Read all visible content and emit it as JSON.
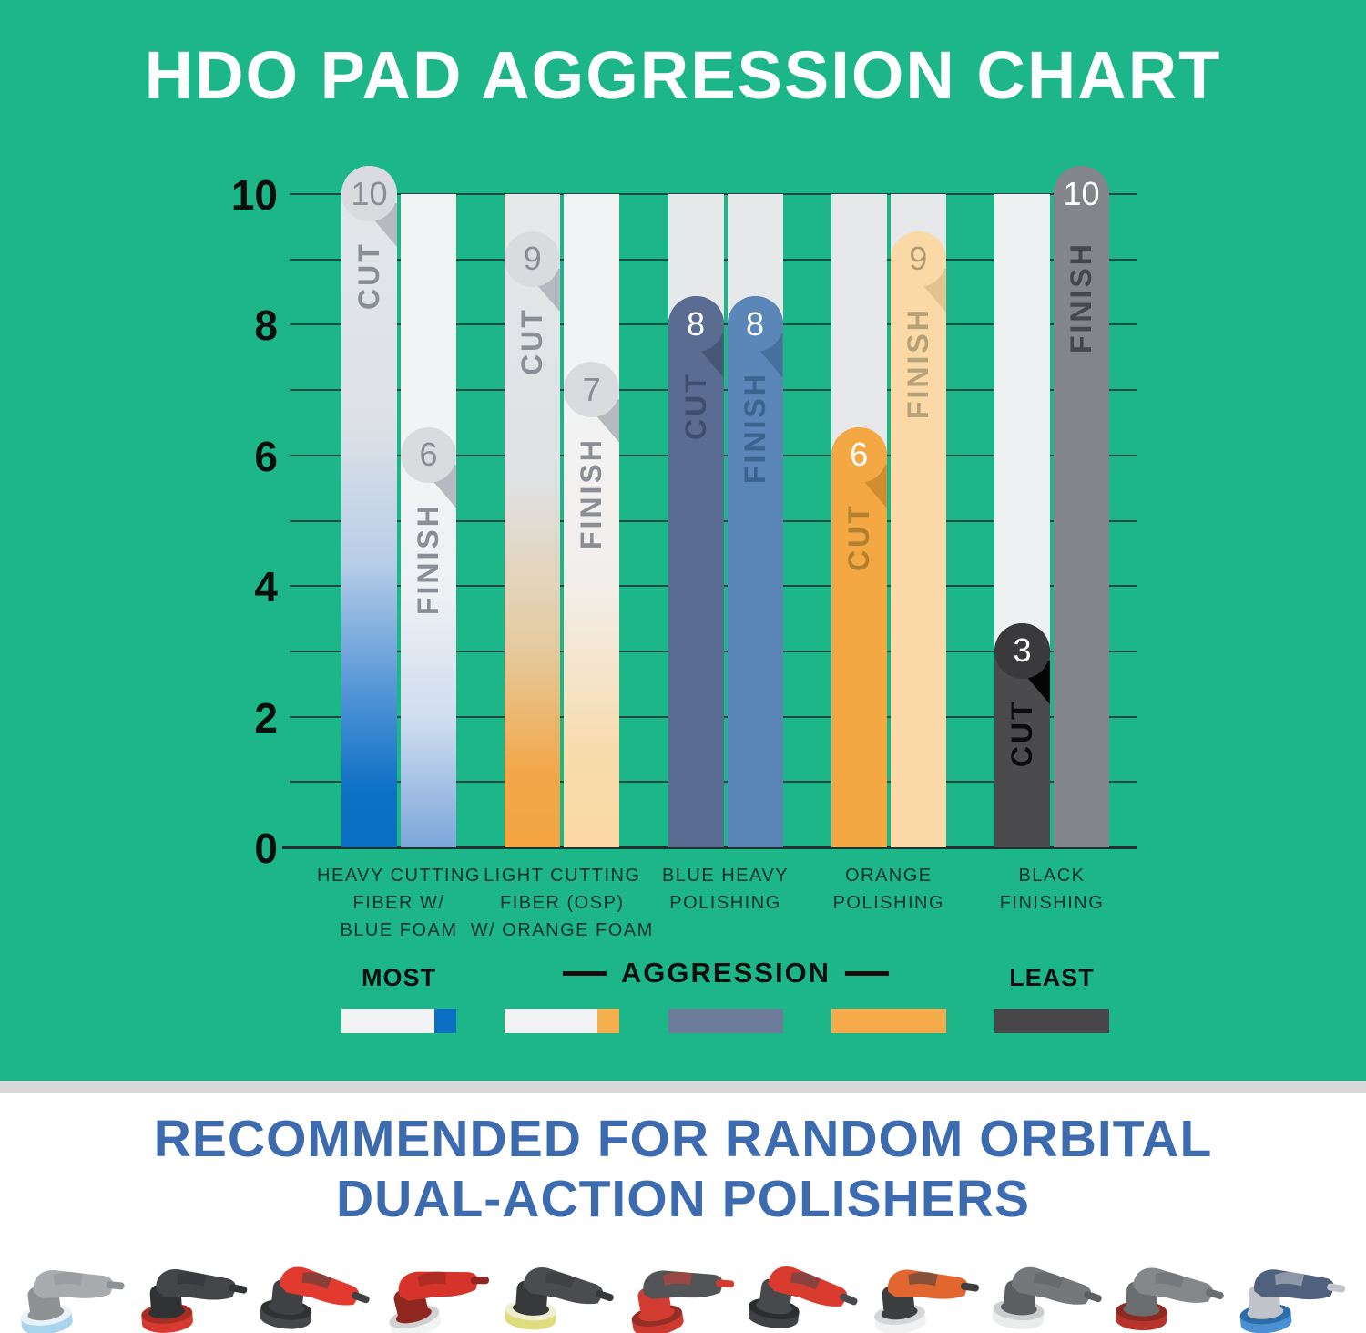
{
  "title": "HDO PAD AGGRESSION CHART",
  "colors": {
    "background_green": "#1db689",
    "gridline": "#1d4b41",
    "baseline": "#16362f",
    "axis_text": "#0a0f0d",
    "category_text": "#15322c",
    "title_text": "#ffffff",
    "footer_heading_blue": "#3c6bb0",
    "separator_gray": "#d7d9d8"
  },
  "chart_data": {
    "type": "bar",
    "title": "HDO PAD AGGRESSION CHART",
    "ylim": [
      0,
      10
    ],
    "yticks": [
      10,
      8,
      6,
      4,
      2,
      0
    ],
    "grid": true,
    "gridline_step": 1,
    "legend_position": "bottom",
    "categories": [
      "HEAVY CUTTING\nFIBER W/\nBLUE FOAM",
      "LIGHT CUTTING\nFIBER (OSP)\nW/ ORANGE FOAM",
      "BLUE HEAVY\nPOLISHING",
      "ORANGE\nPOLISHING",
      "BLACK\nFINISHING"
    ],
    "series": [
      {
        "name": "CUT",
        "values": [
          10,
          9,
          8,
          6,
          3
        ]
      },
      {
        "name": "FINISH",
        "values": [
          6,
          7,
          8,
          9,
          10
        ]
      }
    ],
    "groups": [
      {
        "category": "HEAVY CUTTING\nFIBER W/\nBLUE FOAM",
        "bars": [
          {
            "series": "CUT",
            "value": 10,
            "badge": "10",
            "fill": [
              "#e4e7ea 0%",
              "#dde1e6 38%",
              "#b9cee8 58%",
              "#4f93d6 78%",
              "#0c70c5 92%",
              "#0a6ec3 100%"
            ],
            "track": null,
            "badge_bg": "#d9dbdf",
            "badge_text_color": "#898e95",
            "fold": "#b6bac0",
            "label_color": "#8a8f96"
          },
          {
            "series": "FINISH",
            "value": 6,
            "badge": "6",
            "fill": [
              "#f3f4f6 0%",
              "#eef1f4 40%",
              "#cfdcef 70%",
              "#7ba7da 100%"
            ],
            "track": "#f2f3f5",
            "badge_bg": "#d9dbdf",
            "badge_text_color": "#898e95",
            "fold": "#b6bac0",
            "label_color": "#8a8f96"
          }
        ]
      },
      {
        "category": "LIGHT CUTTING\nFIBER (OSP)\nW/ ORANGE FOAM",
        "bars": [
          {
            "series": "CUT",
            "value": 9,
            "badge": "9",
            "fill": [
              "#e4e7ea 0%",
              "#dfe2e5 40%",
              "#e6ca9e 68%",
              "#f2a748 88%",
              "#f3a440 100%"
            ],
            "track": "#e6e8ea",
            "badge_bg": "#d9dbdf",
            "badge_text_color": "#898e95",
            "fold": "#b6bac0",
            "label_color": "#8a8f96"
          },
          {
            "series": "FINISH",
            "value": 7,
            "badge": "7",
            "fill": [
              "#f3f4f6 0%",
              "#f1efec 45%",
              "#f8dcae 80%",
              "#fbd8a2 100%"
            ],
            "track": "#f2f3f5",
            "badge_bg": "#d9dbdf",
            "badge_text_color": "#898e95",
            "fold": "#b6bac0",
            "label_color": "#8a8f96"
          }
        ]
      },
      {
        "category": "BLUE HEAVY\nPOLISHING",
        "bars": [
          {
            "series": "CUT",
            "value": 8,
            "badge": "8",
            "fill": "#5b6c92",
            "track": "#e6e8ea",
            "badge_bg": "#5b6c92",
            "badge_text_color": "#ffffff",
            "fold": "#475877",
            "label_color": "#3d4e6f"
          },
          {
            "series": "FINISH",
            "value": 8,
            "badge": "8",
            "fill": "#5a87b7",
            "track": "#e6e8ea",
            "badge_bg": "#5a87b7",
            "badge_text_color": "#ffffff",
            "fold": "#44719d",
            "label_color": "#39648f"
          }
        ]
      },
      {
        "category": "ORANGE\nPOLISHING",
        "bars": [
          {
            "series": "CUT",
            "value": 6,
            "badge": "6",
            "fill": "#f3a843",
            "track": "#e6e8ea",
            "badge_bg": "#f3a843",
            "badge_text_color": "#ffffff",
            "fold": "#d08c2f",
            "label_color": "#b5802e"
          },
          {
            "series": "FINISH",
            "value": 9,
            "badge": "9",
            "fill": "#fbd9a6",
            "track": "#e6e8ea",
            "badge_bg": "#fbd9a6",
            "badge_text_color": "#b29a6e",
            "fold": "#e4c28d",
            "label_color": "#b8a077"
          }
        ]
      },
      {
        "category": "BLACK\nFINISHING",
        "bars": [
          {
            "series": "CUT",
            "value": 3,
            "badge": "3",
            "fill": "#4b4b4e",
            "track": "#eff0f1",
            "badge_bg": "#3a3a3d",
            "badge_text_color": "#ffffff",
            "fold": "#050505",
            "label_color": "#0c0c0c"
          },
          {
            "series": "FINISH",
            "value": 10,
            "badge": "10",
            "fill": "#828589",
            "track": null,
            "badge_bg": "#828589",
            "badge_text_color": "#ffffff",
            "fold": null,
            "label_color": "#44484c"
          }
        ]
      }
    ]
  },
  "legend": {
    "most": "MOST",
    "center": "AGGRESSION",
    "least": "LEAST",
    "swatches": [
      {
        "name": "heavy-cutting-fiber-blue-foam",
        "base": "#f1f3f4",
        "tip": "#0b6fc4"
      },
      {
        "name": "light-cutting-fiber-orange-foam",
        "base": "#f1f3f4",
        "tip": "#f5b04d"
      },
      {
        "name": "blue-heavy-polishing",
        "base": "#6d7c9b",
        "tip": null
      },
      {
        "name": "orange-polishing",
        "base": "#f5ab4c",
        "tip": null
      },
      {
        "name": "black-finishing",
        "base": "#474749",
        "tip": null
      }
    ]
  },
  "footer": {
    "heading_line1": "RECOMMENDED FOR RANDOM ORBITAL",
    "heading_line2": "DUAL-ACTION POLISHERS",
    "machines": [
      {
        "name": "polisher-gray-blue-pad",
        "body": "#a8abae",
        "accent": "#8f9295",
        "pad": "#a9d4ee",
        "rim": "#e8f2f8"
      },
      {
        "name": "polisher-dark-red-pad",
        "body": "#434548",
        "accent": "#303234",
        "pad": "#d63a30",
        "rim": "#a92d25"
      },
      {
        "name": "polisher-red-dark-pad",
        "body": "#e23a2e",
        "accent": "#3f4144",
        "pad": "#45474a",
        "rim": "#2f3133"
      },
      {
        "name": "polisher-red-white-pad",
        "body": "#d6342a",
        "accent": "#8f2720",
        "pad": "#f2f3f3",
        "rim": "#cfd0d1"
      },
      {
        "name": "polisher-dark-yellow-pad",
        "body": "#4a4c4f",
        "accent": "#36383a",
        "pad": "#dfdc7d",
        "rim": "#efeecf"
      },
      {
        "name": "polisher-dark-red-accent",
        "body": "#525457",
        "accent": "#d23c31",
        "pad": "#cf3a30",
        "rim": "#952e26"
      },
      {
        "name": "polisher-red-dark-pad-2",
        "body": "#d93b2f",
        "accent": "#47494c",
        "pad": "#3f4144",
        "rim": "#2b2d2f"
      },
      {
        "name": "sander-orange-white-pad",
        "body": "#e2662f",
        "accent": "#3c3e40",
        "pad": "#f1f1f1",
        "rim": "#d4d5d6"
      },
      {
        "name": "polisher-gray-white-pad",
        "body": "#75787b",
        "accent": "#5c5f62",
        "pad": "#eaebeb",
        "rim": "#cbcccd"
      },
      {
        "name": "polisher-gray-red-pad",
        "body": "#85888b",
        "accent": "#6a6d70",
        "pad": "#b6342c",
        "rim": "#8d2a23"
      },
      {
        "name": "polisher-silver-blue-pad",
        "body": "#50617e",
        "accent": "#c0c4ca",
        "pad": "#4a90d3",
        "rim": "#2e6ca8"
      }
    ]
  }
}
